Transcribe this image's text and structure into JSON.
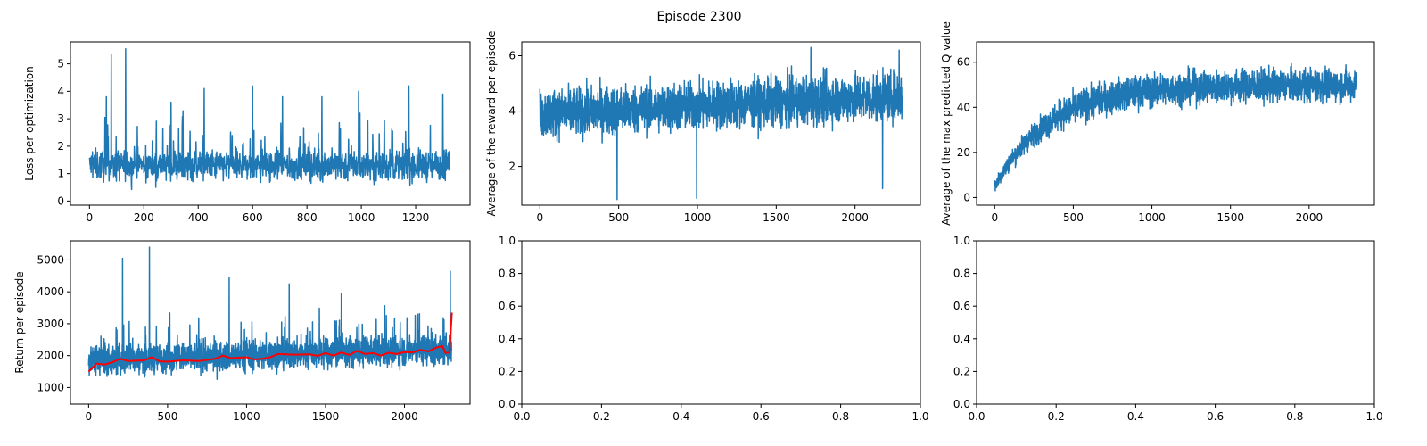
{
  "figure": {
    "title": "Episode 2300"
  },
  "chart_data": [
    {
      "id": "loss",
      "type": "line",
      "title": "",
      "xlabel": "",
      "ylabel": "Loss per optimization",
      "xlim": [
        -70,
        1400
      ],
      "ylim": [
        -0.15,
        5.8
      ],
      "xticks": [
        0,
        200,
        400,
        600,
        800,
        1000,
        1200
      ],
      "yticks": [
        0,
        1,
        2,
        3,
        4,
        5
      ],
      "series": [
        {
          "color": "#1f77b4",
          "n": 1325,
          "base": 1.3,
          "noise": 0.55,
          "low": 0.2,
          "spikes": [
            [
              80,
              5.35
            ],
            [
              133,
              5.55
            ],
            [
              62,
              3.8
            ],
            [
              300,
              3.6
            ],
            [
              422,
              4.1
            ],
            [
              600,
              4.2
            ],
            [
              710,
              3.8
            ],
            [
              855,
              3.8
            ],
            [
              990,
              4.0
            ],
            [
              1175,
              4.2
            ],
            [
              1300,
              3.9
            ]
          ]
        }
      ]
    },
    {
      "id": "reward",
      "type": "line",
      "title": "",
      "xlabel": "",
      "ylabel": "Average of the reward per episode",
      "xlim": [
        -115,
        2415
      ],
      "ylim": [
        0.6,
        6.5
      ],
      "xticks": [
        0,
        500,
        1000,
        1500,
        2000
      ],
      "yticks": [
        2,
        4,
        6
      ],
      "series": [
        {
          "color": "#1f77b4",
          "n": 2300,
          "start": 3.9,
          "end": 4.55,
          "noise": 0.85,
          "low": 0.8,
          "high": 6.3,
          "spikes": [
            [
              490,
              0.8
            ],
            [
              995,
              0.85
            ],
            [
              2175,
              1.2
            ],
            [
              1720,
              6.3
            ],
            [
              2280,
              6.2
            ]
          ]
        }
      ]
    },
    {
      "id": "qvalue",
      "type": "line",
      "title": "",
      "xlabel": "",
      "ylabel": "Average of the max predicted Q value",
      "xlim": [
        -115,
        2415
      ],
      "ylim": [
        -3.4,
        69.0
      ],
      "xticks": [
        0,
        500,
        1000,
        1500,
        2000
      ],
      "yticks": [
        0,
        20,
        40,
        60
      ],
      "series": [
        {
          "color": "#1f77b4",
          "n": 2300,
          "start": 5,
          "plateau": 50,
          "rise": 350,
          "noise": 7,
          "low": 2,
          "high": 65
        }
      ]
    },
    {
      "id": "return",
      "type": "line",
      "title": "",
      "xlabel": "",
      "ylabel": "Return per episode",
      "xlim": [
        -115,
        2415
      ],
      "ylim": [
        480,
        5600
      ],
      "xticks": [
        0,
        500,
        1000,
        1500,
        2000
      ],
      "yticks": [
        1000,
        2000,
        3000,
        4000,
        5000
      ],
      "series": [
        {
          "color": "#1f77b4",
          "n": 2300,
          "base": 1850,
          "slope_end": 2200,
          "noise": 450,
          "low": 650,
          "spikes": [
            [
              215,
              5050
            ],
            [
              385,
              5400
            ],
            [
              890,
              4450
            ],
            [
              1270,
              4250
            ],
            [
              1600,
              3950
            ],
            [
              2085,
              3300
            ],
            [
              2290,
              4650
            ]
          ]
        },
        {
          "color": "#ff0000",
          "smoothed": true,
          "points": [
            [
              0,
              1500
            ],
            [
              50,
              1750
            ],
            [
              100,
              1720
            ],
            [
              150,
              1790
            ],
            [
              200,
              1900
            ],
            [
              250,
              1830
            ],
            [
              300,
              1840
            ],
            [
              350,
              1850
            ],
            [
              400,
              1950
            ],
            [
              450,
              1820
            ],
            [
              500,
              1810
            ],
            [
              600,
              1850
            ],
            [
              700,
              1830
            ],
            [
              800,
              1900
            ],
            [
              850,
              2000
            ],
            [
              900,
              1920
            ],
            [
              1000,
              1950
            ],
            [
              1050,
              1880
            ],
            [
              1100,
              1900
            ],
            [
              1150,
              1950
            ],
            [
              1200,
              2050
            ],
            [
              1300,
              2030
            ],
            [
              1400,
              2040
            ],
            [
              1450,
              1990
            ],
            [
              1500,
              2080
            ],
            [
              1550,
              2000
            ],
            [
              1600,
              2100
            ],
            [
              1650,
              2020
            ],
            [
              1700,
              2150
            ],
            [
              1750,
              2050
            ],
            [
              1800,
              2080
            ],
            [
              1850,
              2000
            ],
            [
              1900,
              2090
            ],
            [
              1950,
              2050
            ],
            [
              2000,
              2110
            ],
            [
              2050,
              2100
            ],
            [
              2100,
              2180
            ],
            [
              2150,
              2130
            ],
            [
              2200,
              2250
            ],
            [
              2240,
              2300
            ],
            [
              2260,
              2080
            ],
            [
              2285,
              2100
            ],
            [
              2300,
              3350
            ]
          ]
        }
      ]
    },
    {
      "id": "empty1",
      "type": "line",
      "title": "",
      "xlabel": "",
      "ylabel": "",
      "xlim": [
        0,
        1
      ],
      "ylim": [
        0,
        1
      ],
      "xticks": [
        0.0,
        0.2,
        0.4,
        0.6,
        0.8,
        1.0
      ],
      "yticks": [
        0.0,
        0.2,
        0.4,
        0.6,
        0.8,
        1.0
      ],
      "tick_format": "1dp",
      "series": []
    },
    {
      "id": "empty2",
      "type": "line",
      "title": "",
      "xlabel": "",
      "ylabel": "",
      "xlim": [
        0,
        1
      ],
      "ylim": [
        0,
        1
      ],
      "xticks": [
        0.0,
        0.2,
        0.4,
        0.6,
        0.8,
        1.0
      ],
      "yticks": [
        0.0,
        0.2,
        0.4,
        0.6,
        0.8,
        1.0
      ],
      "tick_format": "1dp",
      "series": []
    }
  ]
}
